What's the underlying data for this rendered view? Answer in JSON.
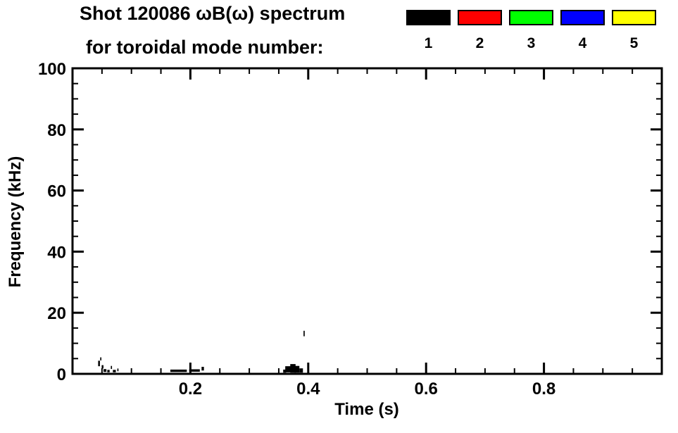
{
  "header": {
    "title": "Shot 120086 ωB(ω) spectrum",
    "subtitle": "for toroidal mode number:"
  },
  "legend": {
    "items": [
      {
        "label": "1",
        "color": "#000000"
      },
      {
        "label": "2",
        "color": "#ff0000"
      },
      {
        "label": "3",
        "color": "#00ff00"
      },
      {
        "label": "4",
        "color": "#0000ff"
      },
      {
        "label": "5",
        "color": "#ffff00"
      }
    ]
  },
  "chart_data": {
    "type": "scatter",
    "title": "Shot 120086 ωB(ω) spectrum for toroidal mode number: 1 2 3 4 5",
    "xlabel": "Time (s)",
    "ylabel": "Frequency (kHz)",
    "xlim": [
      0.0,
      1.0
    ],
    "ylim": [
      0,
      100
    ],
    "x_major_ticks": [
      0.2,
      0.4,
      0.6,
      0.8
    ],
    "x_tick_labels": [
      "0.2",
      "0.4",
      "0.6",
      "0.8"
    ],
    "x_minor_step": 0.05,
    "y_major_ticks": [
      0,
      20,
      40,
      60,
      80,
      100
    ],
    "y_tick_labels": [
      "0",
      "20",
      "40",
      "60",
      "80",
      "100"
    ],
    "y_minor_step": 5,
    "axis_color": "#000000",
    "grid": false,
    "legend_position": "top-right",
    "series": [
      {
        "name": "mode 1",
        "color": "#000000",
        "points": [
          [
            0.045,
            3.4,
            0.003,
            1.8
          ],
          [
            0.048,
            4.9,
            0.002,
            1.0
          ],
          [
            0.051,
            2.3,
            0.003,
            1.1
          ],
          [
            0.055,
            1.1,
            0.005,
            0.9
          ],
          [
            0.061,
            0.9,
            0.004,
            0.8
          ],
          [
            0.066,
            2.1,
            0.002,
            1.0
          ],
          [
            0.071,
            0.9,
            0.005,
            0.8
          ],
          [
            0.077,
            1.3,
            0.002,
            0.9
          ],
          [
            0.18,
            1.0,
            0.028,
            0.8
          ],
          [
            0.207,
            1.1,
            0.018,
            0.8
          ],
          [
            0.221,
            1.7,
            0.004,
            1.2
          ],
          [
            0.36,
            0.9,
            0.005,
            1.0
          ],
          [
            0.366,
            1.5,
            0.01,
            2.0
          ],
          [
            0.374,
            1.8,
            0.009,
            2.8
          ],
          [
            0.381,
            1.5,
            0.008,
            2.2
          ],
          [
            0.388,
            1.1,
            0.006,
            1.4
          ],
          [
            0.393,
            13.2,
            0.002,
            1.8
          ]
        ]
      },
      {
        "name": "mode 2",
        "color": "#ff0000",
        "points": []
      },
      {
        "name": "mode 3",
        "color": "#00ff00",
        "points": []
      },
      {
        "name": "mode 4",
        "color": "#0000ff",
        "points": []
      },
      {
        "name": "mode 5",
        "color": "#ffff00",
        "points": []
      }
    ]
  }
}
